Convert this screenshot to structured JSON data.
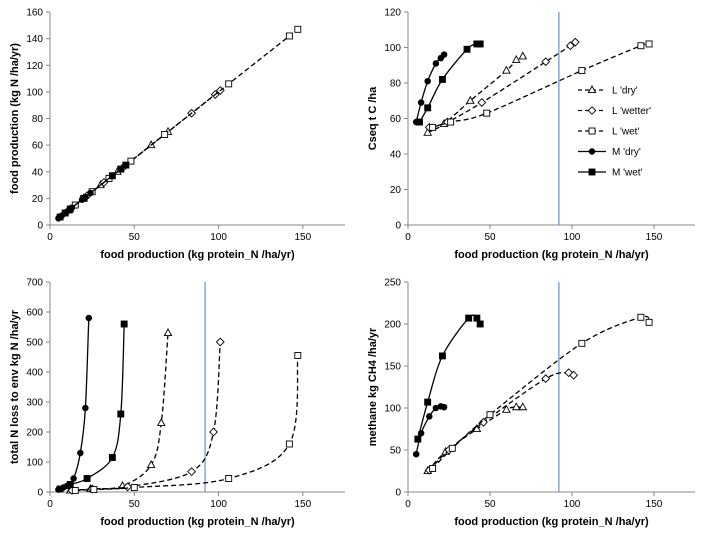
{
  "chart_data": [
    {
      "id": "food-n",
      "type": "scatter",
      "xlabel": "food production (kg protein_N /ha/yr)",
      "ylabel": "food production (kg N /ha/yr)",
      "xlim": [
        0,
        175
      ],
      "ylim": [
        0,
        160
      ],
      "xticks": [
        0,
        50,
        100,
        150
      ],
      "yticks": [
        0,
        20,
        40,
        60,
        80,
        100,
        120,
        140,
        160
      ],
      "vline": null,
      "series": [
        {
          "key": "L-dry",
          "marker": "triangle",
          "line": "dashed",
          "x": [
            11,
            20,
            30,
            40,
            60,
            70
          ],
          "y": [
            11,
            20,
            30,
            40,
            60,
            70
          ]
        },
        {
          "key": "L-wetter",
          "marker": "diamond",
          "line": "dashed",
          "x": [
            12,
            22,
            32,
            44,
            84,
            98,
            101
          ],
          "y": [
            12,
            22,
            32,
            44,
            84,
            98,
            101
          ]
        },
        {
          "key": "L-wet",
          "marker": "square-open",
          "line": "dashed",
          "x": [
            15,
            25,
            35,
            48,
            68,
            106,
            142,
            147
          ],
          "y": [
            15,
            25,
            35,
            48,
            68,
            106,
            142,
            147
          ]
        },
        {
          "key": "M-dry",
          "marker": "circle",
          "line": "solid",
          "x": [
            5,
            7,
            10,
            12,
            13,
            19,
            21,
            24
          ],
          "y": [
            5,
            7,
            10,
            12,
            13,
            19,
            21,
            24
          ]
        },
        {
          "key": "M-wet",
          "marker": "square-filled",
          "line": "solid",
          "x": [
            6,
            9,
            12,
            20,
            37,
            42,
            45
          ],
          "y": [
            6,
            9,
            12,
            20,
            37,
            42,
            45
          ]
        }
      ]
    },
    {
      "id": "cseq",
      "type": "scatter",
      "xlabel": "food production (kg protein_N /ha/yr)",
      "ylabel": "Cseq t C /ha",
      "xlim": [
        0,
        175
      ],
      "ylim": [
        0,
        120
      ],
      "xticks": [
        0,
        50,
        100,
        150
      ],
      "yticks": [
        0,
        20,
        40,
        60,
        80,
        100,
        120
      ],
      "vline": 92,
      "series": [
        {
          "key": "L-dry",
          "marker": "triangle",
          "line": "dashed",
          "x": [
            12,
            22,
            38,
            60,
            66,
            70
          ],
          "y": [
            52,
            57,
            70,
            87,
            93,
            95
          ]
        },
        {
          "key": "L-wetter",
          "marker": "diamond",
          "line": "dashed",
          "x": [
            13,
            24,
            45,
            84,
            99,
            102
          ],
          "y": [
            55,
            58,
            69,
            92,
            101,
            103
          ]
        },
        {
          "key": "L-wet",
          "marker": "square-open",
          "line": "dashed",
          "x": [
            15,
            26,
            48,
            106,
            142,
            147
          ],
          "y": [
            55,
            58,
            63,
            87,
            101,
            102
          ]
        },
        {
          "key": "M-dry",
          "marker": "circle",
          "line": "solid",
          "x": [
            5,
            8,
            12,
            17,
            20,
            22
          ],
          "y": [
            58,
            69,
            81,
            91,
            94,
            96
          ]
        },
        {
          "key": "M-wet",
          "marker": "square-filled",
          "line": "solid",
          "x": [
            7,
            12,
            21,
            36,
            42,
            44
          ],
          "y": [
            58,
            66,
            82,
            99,
            102,
            102
          ]
        }
      ],
      "legend": {
        "position": "right",
        "entries": [
          {
            "key": "L-dry",
            "label": "L 'dry'"
          },
          {
            "key": "L-wetter",
            "label": "L 'wetter'"
          },
          {
            "key": "L-wet",
            "label": "L 'wet'"
          },
          {
            "key": "M-dry",
            "label": "M 'dry'"
          },
          {
            "key": "M-wet",
            "label": "M 'wet'"
          }
        ]
      }
    },
    {
      "id": "nloss",
      "type": "scatter",
      "xlabel": "food production (kg protein_N /ha/yr)",
      "ylabel": "total N loss to env kg N /ha/yr",
      "xlim": [
        0,
        175
      ],
      "ylim": [
        0,
        700
      ],
      "xticks": [
        0,
        50,
        100,
        150
      ],
      "yticks": [
        0,
        100,
        200,
        300,
        400,
        500,
        600,
        700
      ],
      "vline": 92,
      "series": [
        {
          "key": "L-dry",
          "marker": "triangle",
          "line": "dashed",
          "x": [
            12,
            24,
            43,
            60,
            66,
            70
          ],
          "y": [
            5,
            10,
            20,
            90,
            230,
            530
          ]
        },
        {
          "key": "L-wetter",
          "marker": "diamond",
          "line": "dashed",
          "x": [
            13,
            25,
            46,
            84,
            97,
            101
          ],
          "y": [
            5,
            10,
            17,
            68,
            200,
            500
          ]
        },
        {
          "key": "L-wet",
          "marker": "square-open",
          "line": "dashed",
          "x": [
            15,
            26,
            50,
            106,
            142,
            147
          ],
          "y": [
            5,
            8,
            15,
            45,
            160,
            455
          ]
        },
        {
          "key": "M-dry",
          "marker": "circle",
          "line": "solid",
          "x": [
            5,
            8,
            10,
            14,
            18,
            21,
            23
          ],
          "y": [
            8,
            15,
            20,
            45,
            130,
            280,
            580
          ]
        },
        {
          "key": "M-wet",
          "marker": "square-filled",
          "line": "solid",
          "x": [
            6,
            12,
            22,
            37,
            42,
            44
          ],
          "y": [
            10,
            25,
            45,
            115,
            260,
            560
          ]
        }
      ]
    },
    {
      "id": "methane",
      "type": "scatter",
      "xlabel": "food production (kg protein_N /ha/yr)",
      "ylabel": "methane  kg CH4 /ha/yr",
      "xlim": [
        0,
        175
      ],
      "ylim": [
        0,
        250
      ],
      "xticks": [
        0,
        50,
        100,
        150
      ],
      "yticks": [
        0,
        50,
        100,
        150,
        200,
        250
      ],
      "vline": 92,
      "series": [
        {
          "key": "L-dry",
          "marker": "triangle",
          "line": "dashed",
          "x": [
            12,
            23,
            42,
            60,
            66,
            70
          ],
          "y": [
            25,
            48,
            75,
            98,
            101,
            101
          ]
        },
        {
          "key": "L-wetter",
          "marker": "diamond",
          "line": "dashed",
          "x": [
            13,
            25,
            46,
            84,
            98,
            101
          ],
          "y": [
            26,
            50,
            83,
            135,
            142,
            139
          ]
        },
        {
          "key": "L-wet",
          "marker": "square-open",
          "line": "dashed",
          "x": [
            15,
            27,
            50,
            106,
            142,
            147
          ],
          "y": [
            28,
            52,
            92,
            177,
            208,
            202
          ]
        },
        {
          "key": "M-dry",
          "marker": "circle",
          "line": "solid",
          "x": [
            5,
            8,
            13,
            17,
            20,
            22
          ],
          "y": [
            45,
            70,
            90,
            100,
            102,
            101
          ]
        },
        {
          "key": "M-wet",
          "marker": "square-filled",
          "line": "solid",
          "x": [
            6,
            12,
            21,
            37,
            42,
            44
          ],
          "y": [
            63,
            107,
            162,
            207,
            207,
            200
          ]
        }
      ]
    }
  ]
}
